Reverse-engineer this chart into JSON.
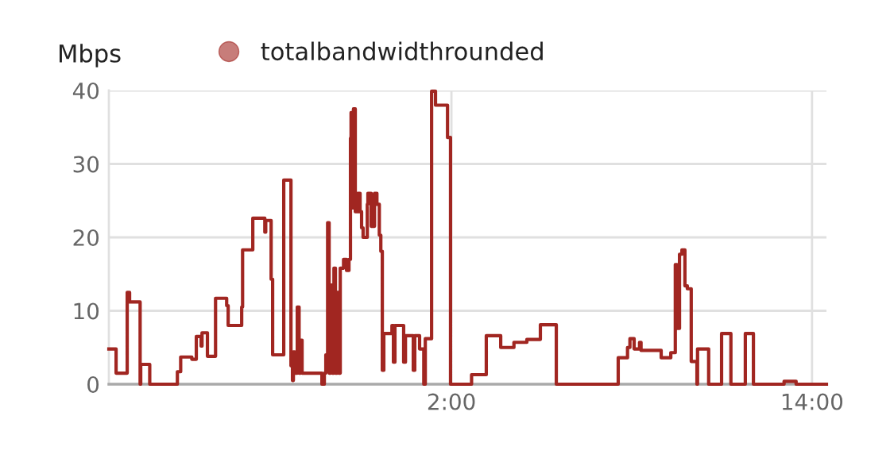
{
  "chart_data": {
    "type": "step",
    "ylabel": "Mbps",
    "legend": "top",
    "grid": true,
    "marker": "none",
    "line_style": "solid",
    "xlim": [
      -9.4,
      14.48
    ],
    "xticks": [
      {
        "value": 2,
        "label": "2:00"
      },
      {
        "value": 14,
        "label": "14:00"
      }
    ],
    "ylim": [
      0,
      40
    ],
    "yticks": [
      0,
      10,
      20,
      30,
      40
    ],
    "series": [
      {
        "name": "totalbandwidthrounded",
        "color": "#a12621",
        "x": [
          -9.4,
          -9.16,
          -8.79,
          -8.71,
          -8.36,
          -8.34,
          -8.04,
          -7.12,
          -7.01,
          -6.64,
          -6.49,
          -6.33,
          -6.3,
          -6.12,
          -5.85,
          -5.48,
          -5.43,
          -4.98,
          -4.95,
          -4.61,
          -4.21,
          -4.18,
          -4.0,
          -3.95,
          -3.58,
          -3.34,
          -3.29,
          -3.26,
          -3.21,
          -3.13,
          -3.07,
          -3.02,
          -2.97,
          -2.31,
          -2.23,
          -2.18,
          -2.12,
          -2.07,
          -2.02,
          -1.96,
          -1.91,
          -1.86,
          -1.8,
          -1.75,
          -1.7,
          -1.59,
          -1.49,
          -1.41,
          -1.36,
          -1.34,
          -1.28,
          -1.26,
          -1.2,
          -1.12,
          -1.04,
          -0.99,
          -0.94,
          -0.8,
          -0.78,
          -0.67,
          -0.56,
          -0.48,
          -0.4,
          -0.35,
          -0.3,
          -0.25,
          0.02,
          0.07,
          0.12,
          0.41,
          0.47,
          0.73,
          0.78,
          0.94,
          1.08,
          1.13,
          1.34,
          1.47,
          1.87,
          1.97,
          2.67,
          3.16,
          3.64,
          4.08,
          4.51,
          4.96,
          5.49,
          7.55,
          7.86,
          7.94,
          8.08,
          8.26,
          8.31,
          8.98,
          9.3,
          9.45,
          9.51,
          9.59,
          9.67,
          9.77,
          9.85,
          9.98,
          10.17,
          10.19,
          10.56,
          10.99,
          11.3,
          11.78,
          12.05,
          13.07,
          13.47,
          14.48
        ],
        "values": [
          4.8,
          1.5,
          12.5,
          11.2,
          0,
          2.7,
          0,
          1.7,
          3.7,
          3.4,
          6.5,
          5.2,
          7.0,
          3.8,
          11.7,
          10.7,
          8.0,
          10.5,
          18.3,
          22.6,
          20.7,
          22.3,
          14.3,
          4.0,
          27.8,
          2.5,
          0.5,
          4.4,
          1.5,
          10.5,
          1.5,
          6.0,
          1.5,
          0,
          1.5,
          4.0,
          22.0,
          1.5,
          13.5,
          1.5,
          15.8,
          1.5,
          12.5,
          1.5,
          15.8,
          17.0,
          15.5,
          17.0,
          33.5,
          37.0,
          24.0,
          37.5,
          23.5,
          26.0,
          23.5,
          21.3,
          20.0,
          24.5,
          26.0,
          21.5,
          26.0,
          24.5,
          20.3,
          18.1,
          1.9,
          6.9,
          8.0,
          3.0,
          8.0,
          3.0,
          6.6,
          1.9,
          6.6,
          4.8,
          0,
          6.2,
          39.9,
          38.0,
          33.6,
          0,
          1.3,
          6.6,
          5.0,
          5.7,
          6.1,
          8.1,
          0,
          3.6,
          5.0,
          6.2,
          4.8,
          5.7,
          4.6,
          3.6,
          4.3,
          16.3,
          7.6,
          17.7,
          18.3,
          13.4,
          13.0,
          3.1,
          0,
          4.8,
          0,
          6.9,
          0,
          6.9,
          0,
          0.4,
          0,
          0
        ]
      }
    ]
  }
}
